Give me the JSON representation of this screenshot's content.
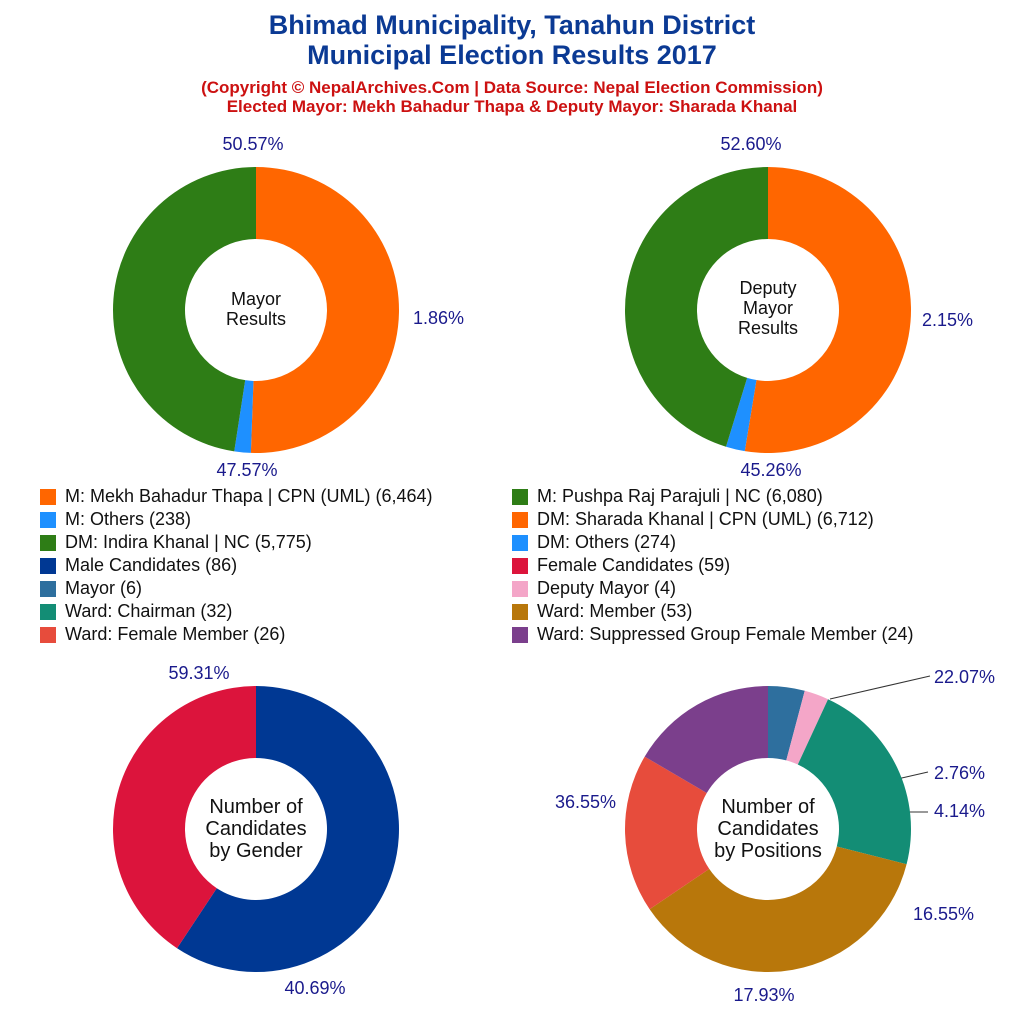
{
  "header": {
    "title_line1": "Bhimad Municipality, Tanahun District",
    "title_line2": "Municipal Election Results 2017",
    "subtitle_line1": "(Copyright © NepalArchives.Com | Data Source: Nepal Election Commission)",
    "subtitle_line2": "Elected Mayor: Mekh Bahadur Thapa & Deputy Mayor: Sharada Khanal"
  },
  "legend": {
    "left": [
      {
        "label": "M: Mekh Bahadur Thapa | CPN (UML) (6,464)",
        "color": "#ff6600"
      },
      {
        "label": "M: Others (238)",
        "color": "#1e90ff"
      },
      {
        "label": "DM: Indira Khanal | NC (5,775)",
        "color": "#2e7d16"
      },
      {
        "label": "Male Candidates (86)",
        "color": "#003893"
      },
      {
        "label": "Mayor (6)",
        "color": "#2e6f9e"
      },
      {
        "label": "Ward: Chairman (32)",
        "color": "#138d75"
      },
      {
        "label": "Ward: Female Member (26)",
        "color": "#e74c3c"
      }
    ],
    "right": [
      {
        "label": "M: Pushpa Raj Parajuli | NC (6,080)",
        "color": "#2e7d16"
      },
      {
        "label": "DM: Sharada Khanal | CPN (UML) (6,712)",
        "color": "#ff6600"
      },
      {
        "label": "DM: Others (274)",
        "color": "#1e90ff"
      },
      {
        "label": "Female Candidates (59)",
        "color": "#dc143c"
      },
      {
        "label": "Deputy Mayor (4)",
        "color": "#f4a6c8"
      },
      {
        "label": "Ward: Member (53)",
        "color": "#b8770b"
      },
      {
        "label": "Ward: Suppressed Group Female Member (24)",
        "color": "#7b3f8c"
      }
    ]
  },
  "chart_data": [
    {
      "type": "pie",
      "title": "Mayor Results",
      "center_label": [
        "Mayor",
        "Results"
      ],
      "slices": [
        {
          "name": "M: Mekh Bahadur Thapa | CPN (UML)",
          "value": 6464,
          "percent_label": "50.57%",
          "color": "#ff6600"
        },
        {
          "name": "M: Others",
          "value": 238,
          "percent_label": "1.86%",
          "color": "#1e90ff"
        },
        {
          "name": "M: Pushpa Raj Parajuli | NC",
          "value": 6080,
          "percent_label": "47.57%",
          "color": "#2e7d16"
        }
      ]
    },
    {
      "type": "pie",
      "title": "Deputy Mayor Results",
      "center_label": [
        "Deputy",
        "Mayor",
        "Results"
      ],
      "slices": [
        {
          "name": "DM: Sharada Khanal | CPN (UML)",
          "value": 6712,
          "percent_label": "52.60%",
          "color": "#ff6600"
        },
        {
          "name": "DM: Others",
          "value": 274,
          "percent_label": "2.15%",
          "color": "#1e90ff"
        },
        {
          "name": "DM: Indira Khanal | NC",
          "value": 5775,
          "percent_label": "45.26%",
          "color": "#2e7d16"
        }
      ]
    },
    {
      "type": "pie",
      "title": "Number of Candidates by Gender",
      "center_label": [
        "Number of",
        "Candidates",
        "by Gender"
      ],
      "slices": [
        {
          "name": "Male Candidates",
          "value": 86,
          "percent_label": "59.31%",
          "color": "#003893"
        },
        {
          "name": "Female Candidates",
          "value": 59,
          "percent_label": "40.69%",
          "color": "#dc143c"
        }
      ]
    },
    {
      "type": "pie",
      "title": "Number of Candidates by Positions",
      "center_label": [
        "Number of",
        "Candidates",
        "by Positions"
      ],
      "slices": [
        {
          "name": "Mayor",
          "value": 6,
          "percent_label": "4.14%",
          "color": "#2e6f9e"
        },
        {
          "name": "Deputy Mayor",
          "value": 4,
          "percent_label": "2.76%",
          "color": "#f4a6c8"
        },
        {
          "name": "Ward: Chairman",
          "value": 32,
          "percent_label": "22.07%",
          "color": "#138d75"
        },
        {
          "name": "Ward: Member",
          "value": 53,
          "percent_label": "36.55%",
          "color": "#b8770b"
        },
        {
          "name": "Ward: Female Member",
          "value": 26,
          "percent_label": "17.93%",
          "color": "#e74c3c"
        },
        {
          "name": "Ward: Suppressed Group Female Member",
          "value": 24,
          "percent_label": "16.55%",
          "color": "#7b3f8c"
        }
      ]
    }
  ]
}
